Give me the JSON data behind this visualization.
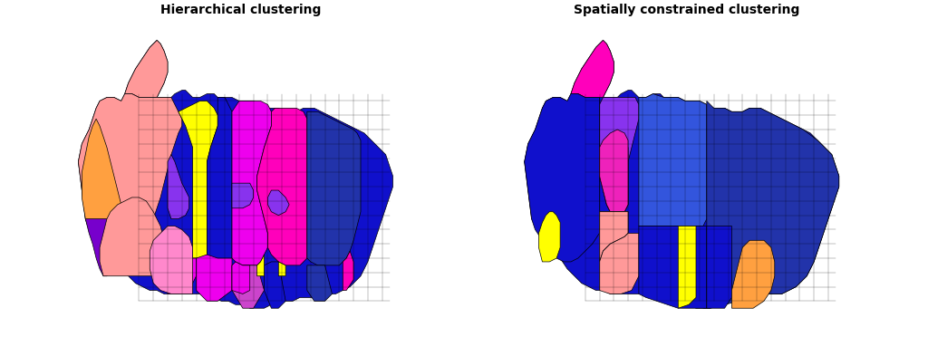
{
  "title_left": "Hierarchical clustering",
  "title_right": "Spatially constrained clustering",
  "title_fontsize": 10,
  "title_fontweight": "bold",
  "bg": "#ffffff",
  "BLUE": "#1010CC",
  "BLUE2": "#2233AA",
  "BLUE3": "#3355DD",
  "PINK": "#FF69B4",
  "MAGENTA": "#EE00EE",
  "YELLOW": "#FFFF00",
  "ORANGE": "#FFA040",
  "PURPLE": "#7700CC",
  "VIOLET": "#8833EE",
  "SALMON": "#FF9999",
  "HOT_PINK": "#FF00BB",
  "LIGHT_PINK": "#FFB0C0"
}
